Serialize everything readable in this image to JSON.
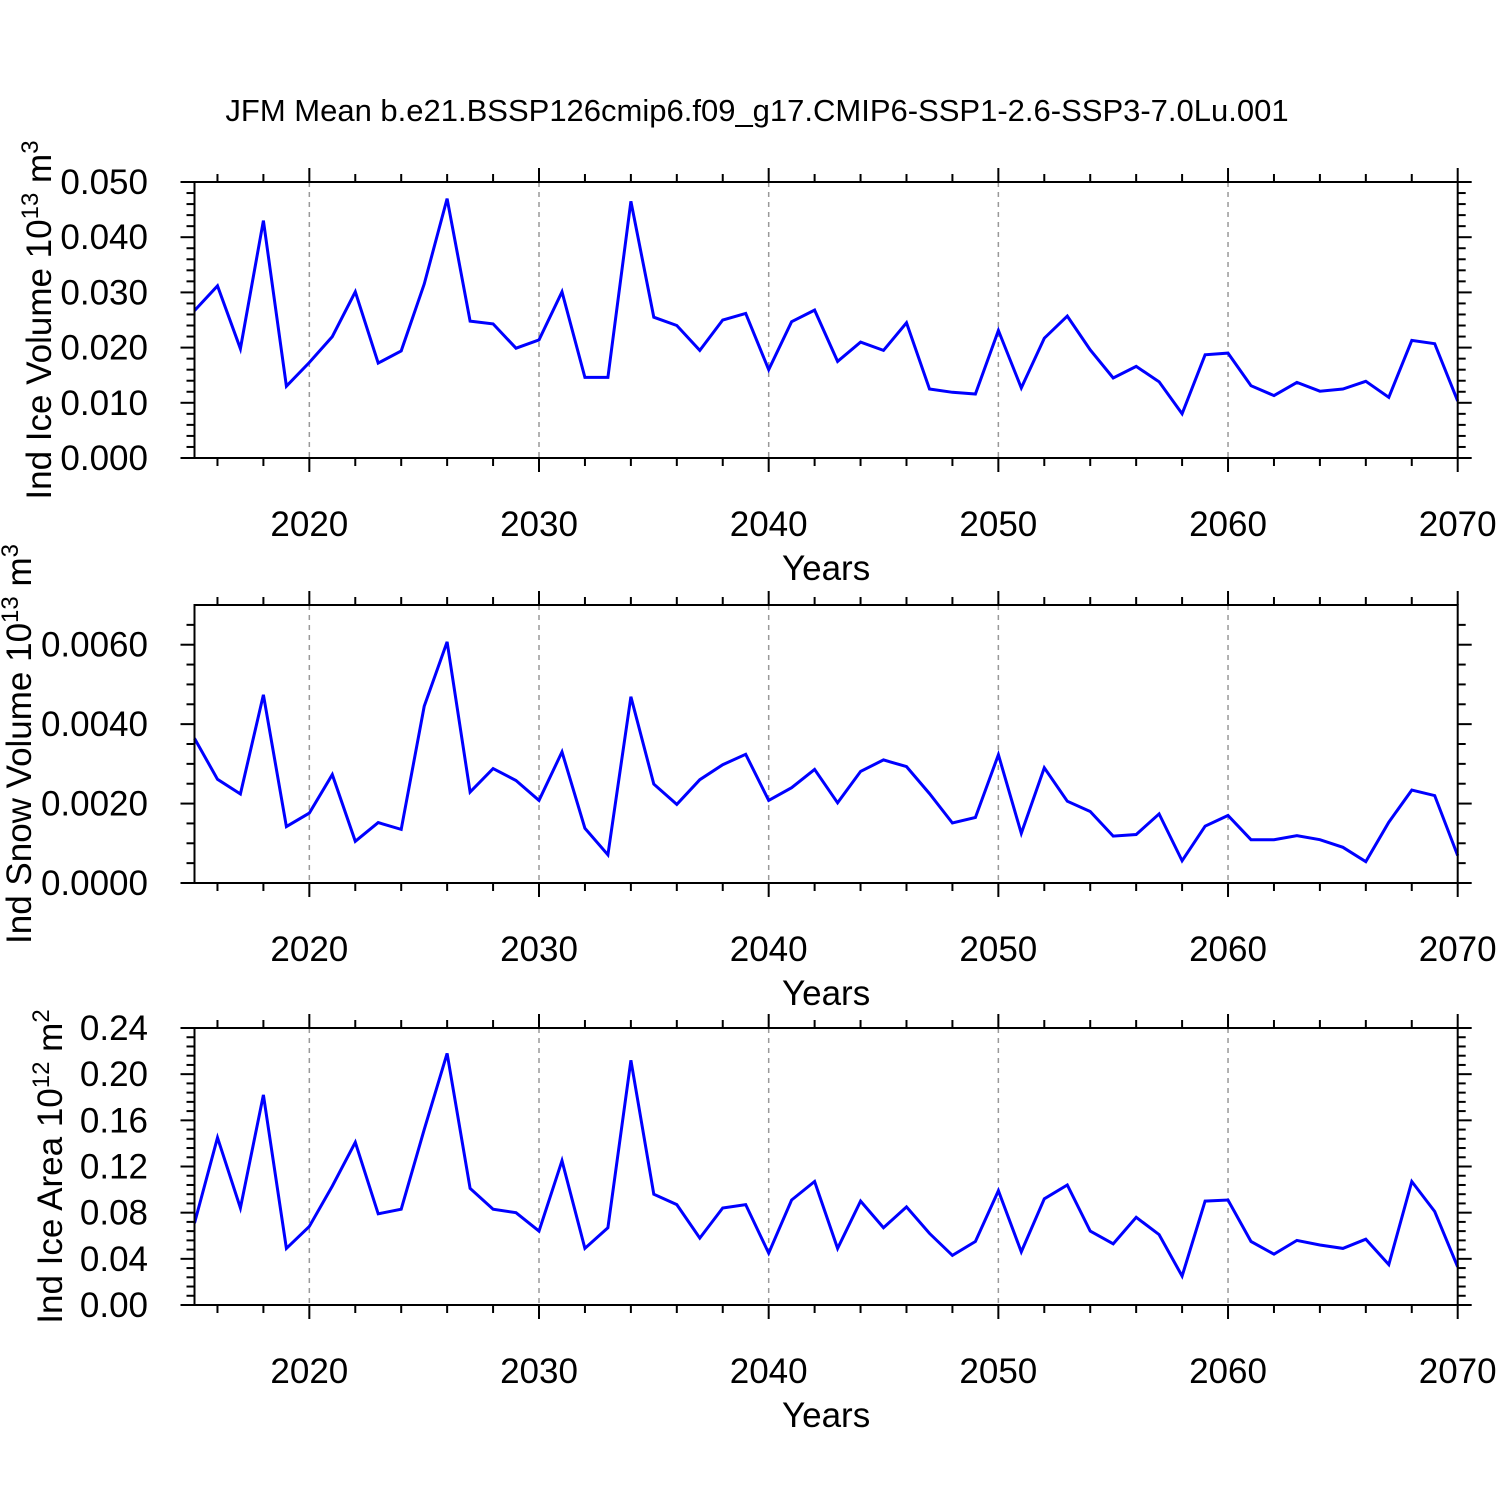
{
  "title": "JFM Mean b.e21.BSSP126cmip6.f09_g17.CMIP6-SSP1-2.6-SSP3-7.0Lu.001",
  "colors": {
    "line": "#0000ff",
    "grid": "#999999",
    "axis": "#000000",
    "background": "#ffffff"
  },
  "x_axis": {
    "label": "Years",
    "tick_labels": [
      "2020",
      "2030",
      "2040",
      "2050",
      "2060",
      "2070"
    ],
    "major_ticks": [
      2020,
      2030,
      2040,
      2050,
      2060,
      2070
    ],
    "minor_step_years": 2,
    "grid_years": [
      2020,
      2030,
      2040,
      2050,
      2060
    ],
    "range": [
      2015,
      2070
    ]
  },
  "chart_data": [
    {
      "type": "line",
      "title": "",
      "ylabel": "Ind Ice Volume 10^13 m^3",
      "ylabel_parts": [
        {
          "text": "Ind Ice Volume 10",
          "sup": false
        },
        {
          "text": "13",
          "sup": true
        },
        {
          "text": " m",
          "sup": false
        },
        {
          "text": "3",
          "sup": true
        }
      ],
      "xlabel": "Years",
      "ylim": [
        0,
        0.05
      ],
      "ytick_major": 0.01,
      "ytick_minor": 0.002,
      "ytick_labels": [
        "0.000",
        "0.010",
        "0.020",
        "0.030",
        "0.040",
        "0.050"
      ],
      "x": [
        2015,
        2016,
        2017,
        2018,
        2019,
        2020,
        2021,
        2022,
        2023,
        2024,
        2025,
        2026,
        2027,
        2028,
        2029,
        2030,
        2031,
        2032,
        2033,
        2034,
        2035,
        2036,
        2037,
        2038,
        2039,
        2040,
        2041,
        2042,
        2043,
        2044,
        2045,
        2046,
        2047,
        2048,
        2049,
        2050,
        2051,
        2052,
        2053,
        2054,
        2055,
        2056,
        2057,
        2058,
        2059,
        2060,
        2061,
        2062,
        2063,
        2064,
        2065,
        2066,
        2067,
        2068,
        2069,
        2070
      ],
      "values": [
        0.0267,
        0.0312,
        0.0198,
        0.043,
        0.013,
        0.0173,
        0.022,
        0.0301,
        0.0172,
        0.0194,
        0.0315,
        0.047,
        0.0248,
        0.0243,
        0.0199,
        0.0214,
        0.0301,
        0.0146,
        0.0146,
        0.0465,
        0.0255,
        0.024,
        0.0195,
        0.025,
        0.0262,
        0.016,
        0.0247,
        0.0268,
        0.0175,
        0.021,
        0.0195,
        0.0245,
        0.0125,
        0.0119,
        0.0116,
        0.0231,
        0.0127,
        0.0217,
        0.0257,
        0.0196,
        0.0145,
        0.0166,
        0.0138,
        0.008,
        0.0187,
        0.019,
        0.0131,
        0.0113,
        0.0137,
        0.0121,
        0.0125,
        0.0139,
        0.011,
        0.0213,
        0.0207,
        0.0103
      ]
    },
    {
      "type": "line",
      "title": "",
      "ylabel": "Ind Snow Volume 10^13 m^3",
      "ylabel_parts": [
        {
          "text": "Ind Snow Volume 10",
          "sup": false
        },
        {
          "text": "13",
          "sup": true
        },
        {
          "text": " m",
          "sup": false
        },
        {
          "text": "3",
          "sup": true
        }
      ],
      "xlabel": "Years",
      "ylim": [
        0,
        0.007
      ],
      "ytick_major": 0.002,
      "ytick_minor": 0.0005,
      "ytick_labels": [
        "0.0000",
        "0.0020",
        "0.0040",
        "0.0060"
      ],
      "x": [
        2015,
        2016,
        2017,
        2018,
        2019,
        2020,
        2021,
        2022,
        2023,
        2024,
        2025,
        2026,
        2027,
        2028,
        2029,
        2030,
        2031,
        2032,
        2033,
        2034,
        2035,
        2036,
        2037,
        2038,
        2039,
        2040,
        2041,
        2042,
        2043,
        2044,
        2045,
        2046,
        2047,
        2048,
        2049,
        2050,
        2051,
        2052,
        2053,
        2054,
        2055,
        2056,
        2057,
        2058,
        2059,
        2060,
        2061,
        2062,
        2063,
        2064,
        2065,
        2066,
        2067,
        2068,
        2069,
        2070
      ],
      "values": [
        0.00364,
        0.00261,
        0.00224,
        0.00474,
        0.00142,
        0.00176,
        0.00273,
        0.00105,
        0.00152,
        0.00135,
        0.00445,
        0.00607,
        0.00229,
        0.00288,
        0.00258,
        0.00208,
        0.0033,
        0.00138,
        0.00071,
        0.00469,
        0.00249,
        0.00198,
        0.0026,
        0.00298,
        0.00324,
        0.00208,
        0.0024,
        0.00286,
        0.00202,
        0.00281,
        0.0031,
        0.00293,
        0.00225,
        0.00151,
        0.00165,
        0.00323,
        0.00125,
        0.0029,
        0.00206,
        0.0018,
        0.00118,
        0.00122,
        0.00174,
        0.00056,
        0.00143,
        0.0017,
        0.00109,
        0.00109,
        0.00119,
        0.00109,
        0.0009,
        0.00054,
        0.00153,
        0.00234,
        0.0022,
        0.00069
      ]
    },
    {
      "type": "line",
      "title": "",
      "ylabel": "Ind Ice Area 10^12 m^2",
      "ylabel_parts": [
        {
          "text": "Ind Ice Area 10",
          "sup": false
        },
        {
          "text": "12",
          "sup": true
        },
        {
          "text": " m",
          "sup": false
        },
        {
          "text": "2",
          "sup": true
        }
      ],
      "xlabel": "Years",
      "ylim": [
        0,
        0.24
      ],
      "ytick_major": 0.04,
      "ytick_minor": 0.008,
      "ytick_labels": [
        "0.00",
        "0.04",
        "0.08",
        "0.12",
        "0.16",
        "0.20",
        "0.24"
      ],
      "x": [
        2015,
        2016,
        2017,
        2018,
        2019,
        2020,
        2021,
        2022,
        2023,
        2024,
        2025,
        2026,
        2027,
        2028,
        2029,
        2030,
        2031,
        2032,
        2033,
        2034,
        2035,
        2036,
        2037,
        2038,
        2039,
        2040,
        2041,
        2042,
        2043,
        2044,
        2045,
        2046,
        2047,
        2048,
        2049,
        2050,
        2051,
        2052,
        2053,
        2054,
        2055,
        2056,
        2057,
        2058,
        2059,
        2060,
        2061,
        2062,
        2063,
        2064,
        2065,
        2066,
        2067,
        2068,
        2069,
        2070
      ],
      "values": [
        0.071,
        0.145,
        0.084,
        0.182,
        0.049,
        0.068,
        0.103,
        0.141,
        0.079,
        0.083,
        0.152,
        0.218,
        0.101,
        0.083,
        0.08,
        0.064,
        0.125,
        0.049,
        0.067,
        0.212,
        0.096,
        0.087,
        0.058,
        0.084,
        0.087,
        0.045,
        0.091,
        0.107,
        0.049,
        0.09,
        0.067,
        0.085,
        0.062,
        0.043,
        0.055,
        0.099,
        0.046,
        0.092,
        0.104,
        0.064,
        0.053,
        0.076,
        0.061,
        0.025,
        0.09,
        0.091,
        0.055,
        0.044,
        0.056,
        0.052,
        0.049,
        0.057,
        0.035,
        0.107,
        0.081,
        0.033
      ]
    }
  ]
}
